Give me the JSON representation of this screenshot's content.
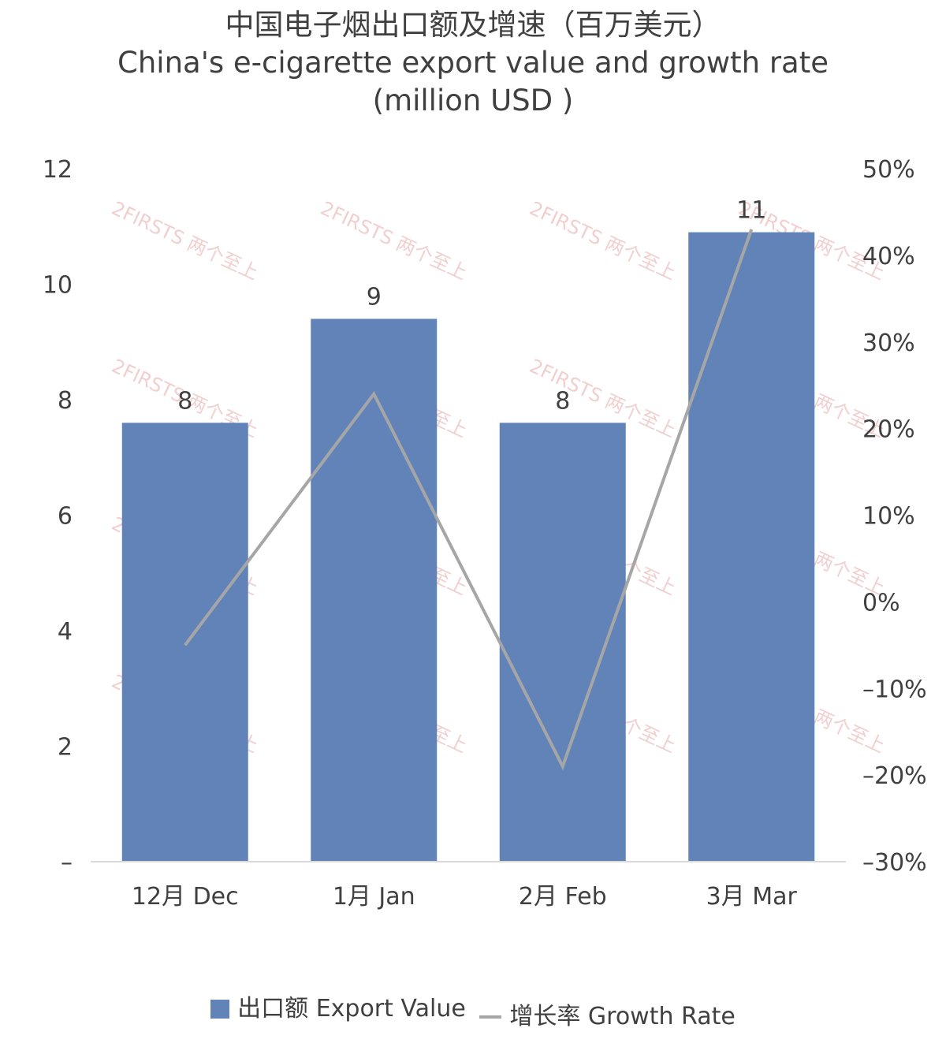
{
  "title": {
    "line1": "中国电子烟出口额及增速（百万美元）",
    "line2": "China's e-cigarette export value and growth rate",
    "line3": "(million USD )"
  },
  "watermark": "2FIRSTS 两个至上",
  "colors": {
    "bar": "#6183b8",
    "line": "#a6a6a6",
    "axis": "#d9d9d9",
    "text": "#404040",
    "watermark": "#e7a9a9"
  },
  "chart_data": {
    "type": "bar",
    "categories": [
      "12月 Dec",
      "1月 Jan",
      "2月 Feb",
      "3月 Mar"
    ],
    "series": [
      {
        "name": "出口额 Export Value",
        "type": "bar",
        "axis": "left",
        "values": [
          7.6,
          9.4,
          7.6,
          10.9
        ],
        "data_labels": [
          "8",
          "9",
          "8",
          "11"
        ]
      },
      {
        "name": "增长率 Growth Rate",
        "type": "line",
        "axis": "right",
        "values": [
          -5,
          24,
          -19,
          43
        ]
      }
    ],
    "y_left": {
      "min": 0,
      "max": 12,
      "ticks": [
        0,
        2,
        4,
        6,
        8,
        10,
        12
      ],
      "tick_labels": [
        "–",
        "2",
        "4",
        "6",
        "8",
        "10",
        "12"
      ]
    },
    "y_right": {
      "min": -30,
      "max": 50,
      "ticks": [
        -30,
        -20,
        -10,
        0,
        10,
        20,
        30,
        40,
        50
      ],
      "tick_labels": [
        "–30%",
        "–20%",
        "–10%",
        "0%",
        "10%",
        "20%",
        "30%",
        "40%",
        "50%"
      ]
    },
    "grid": false,
    "legend_position": "bottom"
  },
  "legend": {
    "bar_label": "出口额 Export Value",
    "line_label": "增长率 Growth Rate"
  }
}
